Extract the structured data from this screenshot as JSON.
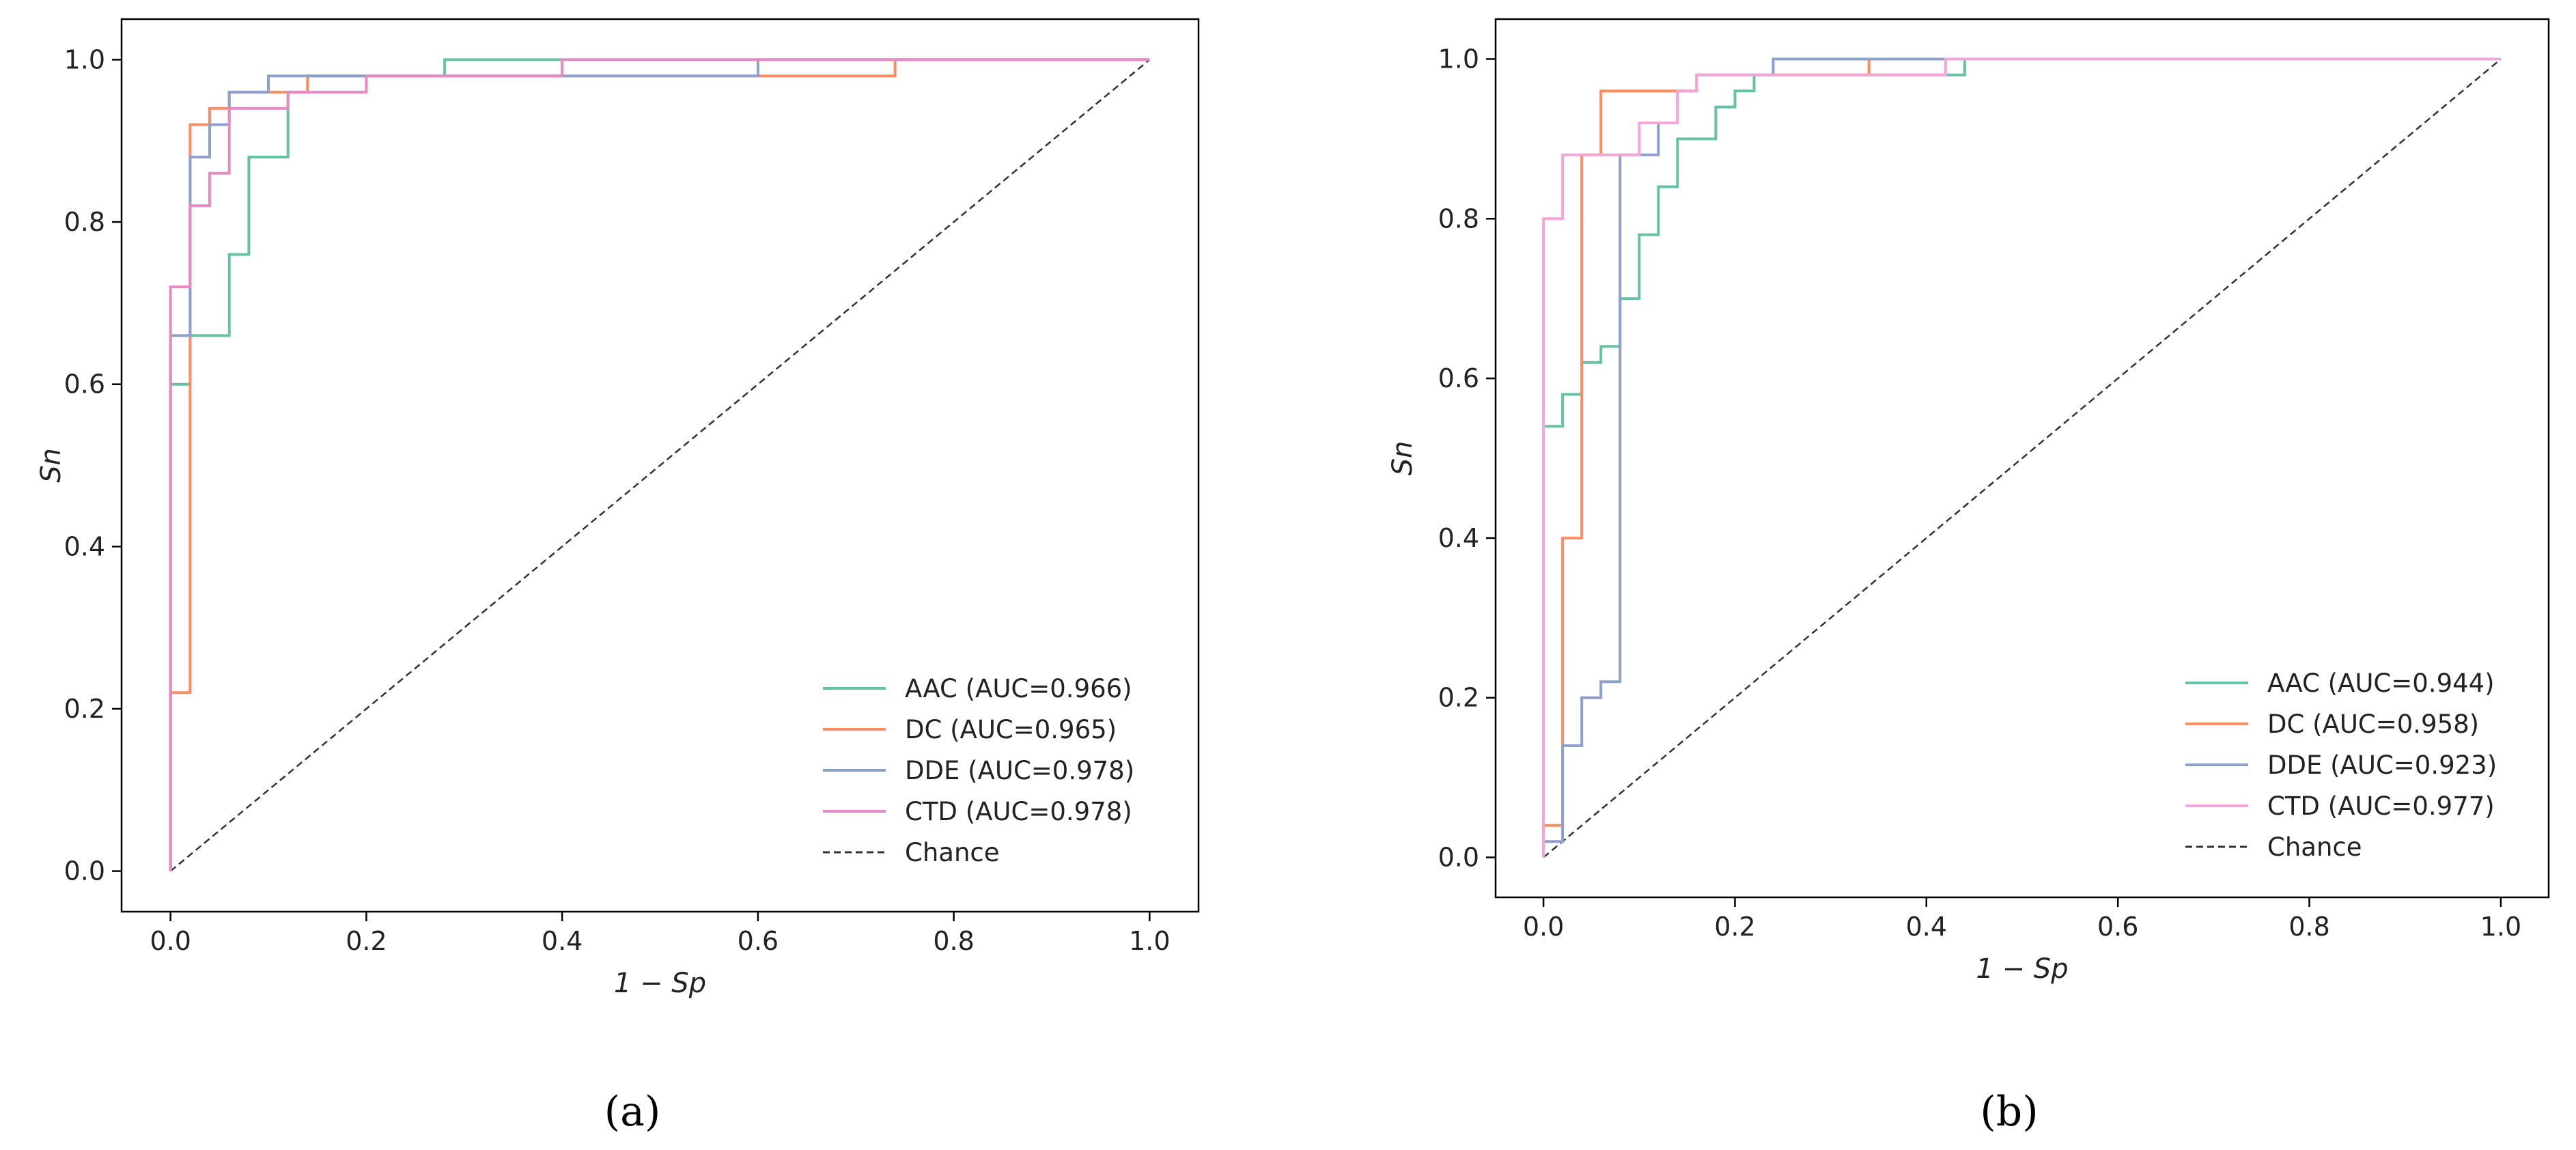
{
  "chart_data": [
    {
      "type": "line",
      "subtype": "roc_curve",
      "panel_label": "a",
      "xlabel": "1 − Sp",
      "ylabel": "Sn",
      "xlim": [
        -0.05,
        1.05
      ],
      "ylim": [
        -0.05,
        1.05
      ],
      "xticks": [
        0.0,
        0.2,
        0.4,
        0.6,
        0.8,
        1.0
      ],
      "yticks": [
        0.0,
        0.2,
        0.4,
        0.6,
        0.8,
        1.0
      ],
      "tick_labels": [
        "0.0",
        "0.2",
        "0.4",
        "0.6",
        "0.8",
        "1.0"
      ],
      "grid": false,
      "legend_position": "lower-right",
      "series": [
        {
          "name": "AAC",
          "label": "AAC (AUC=0.966)",
          "auc": 0.966,
          "color": "#66c2a5",
          "points": [
            [
              0,
              0
            ],
            [
              0,
              0.6
            ],
            [
              0.02,
              0.6
            ],
            [
              0.02,
              0.66
            ],
            [
              0.06,
              0.66
            ],
            [
              0.06,
              0.76
            ],
            [
              0.08,
              0.76
            ],
            [
              0.08,
              0.88
            ],
            [
              0.12,
              0.88
            ],
            [
              0.12,
              0.96
            ],
            [
              0.14,
              0.96
            ],
            [
              0.14,
              0.98
            ],
            [
              0.28,
              0.98
            ],
            [
              0.28,
              1.0
            ],
            [
              1.0,
              1.0
            ]
          ]
        },
        {
          "name": "DC",
          "label": "DC (AUC=0.965)",
          "auc": 0.965,
          "color": "#fc8d62",
          "points": [
            [
              0,
              0
            ],
            [
              0,
              0.22
            ],
            [
              0.02,
              0.22
            ],
            [
              0.02,
              0.92
            ],
            [
              0.04,
              0.92
            ],
            [
              0.04,
              0.94
            ],
            [
              0.06,
              0.94
            ],
            [
              0.06,
              0.96
            ],
            [
              0.14,
              0.96
            ],
            [
              0.14,
              0.98
            ],
            [
              0.74,
              0.98
            ],
            [
              0.74,
              1.0
            ],
            [
              1.0,
              1.0
            ]
          ]
        },
        {
          "name": "DDE",
          "label": "DDE (AUC=0.978)",
          "auc": 0.978,
          "color": "#8da0cb",
          "points": [
            [
              0,
              0
            ],
            [
              0,
              0.66
            ],
            [
              0.02,
              0.66
            ],
            [
              0.02,
              0.88
            ],
            [
              0.04,
              0.88
            ],
            [
              0.04,
              0.92
            ],
            [
              0.06,
              0.92
            ],
            [
              0.06,
              0.96
            ],
            [
              0.1,
              0.96
            ],
            [
              0.1,
              0.98
            ],
            [
              0.6,
              0.98
            ],
            [
              0.6,
              1.0
            ],
            [
              1.0,
              1.0
            ]
          ]
        },
        {
          "name": "CTD",
          "label": "CTD (AUC=0.978)",
          "auc": 0.978,
          "color": "#e78ac3",
          "points": [
            [
              0,
              0
            ],
            [
              0,
              0.72
            ],
            [
              0.02,
              0.72
            ],
            [
              0.02,
              0.82
            ],
            [
              0.04,
              0.82
            ],
            [
              0.04,
              0.86
            ],
            [
              0.06,
              0.86
            ],
            [
              0.06,
              0.94
            ],
            [
              0.12,
              0.94
            ],
            [
              0.12,
              0.96
            ],
            [
              0.2,
              0.96
            ],
            [
              0.2,
              0.98
            ],
            [
              0.4,
              0.98
            ],
            [
              0.4,
              1.0
            ],
            [
              1.0,
              1.0
            ]
          ]
        },
        {
          "name": "Chance",
          "label": "Chance",
          "color": "#333333",
          "dashed": true,
          "points": [
            [
              0,
              0
            ],
            [
              1,
              1
            ]
          ]
        }
      ]
    },
    {
      "type": "line",
      "subtype": "roc_curve",
      "panel_label": "b",
      "xlabel": "1 − Sp",
      "ylabel": "Sn",
      "xlim": [
        -0.05,
        1.05
      ],
      "ylim": [
        -0.05,
        1.05
      ],
      "xticks": [
        0.0,
        0.2,
        0.4,
        0.6,
        0.8,
        1.0
      ],
      "yticks": [
        0.0,
        0.2,
        0.4,
        0.6,
        0.8,
        1.0
      ],
      "tick_labels": [
        "0.0",
        "0.2",
        "0.4",
        "0.6",
        "0.8",
        "1.0"
      ],
      "grid": false,
      "legend_position": "lower-right",
      "series": [
        {
          "name": "AAC",
          "label": "AAC (AUC=0.944)",
          "auc": 0.944,
          "color": "#66c2a5",
          "points": [
            [
              0,
              0
            ],
            [
              0,
              0.54
            ],
            [
              0.02,
              0.54
            ],
            [
              0.02,
              0.58
            ],
            [
              0.04,
              0.58
            ],
            [
              0.04,
              0.62
            ],
            [
              0.06,
              0.62
            ],
            [
              0.06,
              0.64
            ],
            [
              0.08,
              0.64
            ],
            [
              0.08,
              0.7
            ],
            [
              0.1,
              0.7
            ],
            [
              0.1,
              0.78
            ],
            [
              0.12,
              0.78
            ],
            [
              0.12,
              0.84
            ],
            [
              0.14,
              0.84
            ],
            [
              0.14,
              0.9
            ],
            [
              0.18,
              0.9
            ],
            [
              0.18,
              0.94
            ],
            [
              0.2,
              0.94
            ],
            [
              0.2,
              0.96
            ],
            [
              0.22,
              0.96
            ],
            [
              0.22,
              0.98
            ],
            [
              0.44,
              0.98
            ],
            [
              0.44,
              1.0
            ],
            [
              1.0,
              1.0
            ]
          ]
        },
        {
          "name": "DC",
          "label": "DC (AUC=0.958)",
          "auc": 0.958,
          "color": "#fc8d62",
          "points": [
            [
              0,
              0
            ],
            [
              0,
              0.04
            ],
            [
              0.02,
              0.04
            ],
            [
              0.02,
              0.4
            ],
            [
              0.04,
              0.4
            ],
            [
              0.04,
              0.88
            ],
            [
              0.06,
              0.88
            ],
            [
              0.06,
              0.96
            ],
            [
              0.16,
              0.96
            ],
            [
              0.16,
              0.98
            ],
            [
              0.34,
              0.98
            ],
            [
              0.34,
              1.0
            ],
            [
              1.0,
              1.0
            ]
          ]
        },
        {
          "name": "DDE",
          "label": "DDE (AUC=0.923)",
          "auc": 0.923,
          "color": "#8da0cb",
          "points": [
            [
              0,
              0
            ],
            [
              0,
              0.02
            ],
            [
              0.02,
              0.02
            ],
            [
              0.02,
              0.14
            ],
            [
              0.04,
              0.14
            ],
            [
              0.04,
              0.2
            ],
            [
              0.06,
              0.2
            ],
            [
              0.06,
              0.22
            ],
            [
              0.08,
              0.22
            ],
            [
              0.08,
              0.88
            ],
            [
              0.12,
              0.88
            ],
            [
              0.12,
              0.92
            ],
            [
              0.14,
              0.92
            ],
            [
              0.14,
              0.96
            ],
            [
              0.16,
              0.96
            ],
            [
              0.16,
              0.98
            ],
            [
              0.24,
              0.98
            ],
            [
              0.24,
              1.0
            ],
            [
              1.0,
              1.0
            ]
          ]
        },
        {
          "name": "CTD",
          "label": "CTD (AUC=0.977)",
          "auc": 0.977,
          "color": "#f4a6d7",
          "points": [
            [
              0,
              0
            ],
            [
              0,
              0.8
            ],
            [
              0.02,
              0.8
            ],
            [
              0.02,
              0.88
            ],
            [
              0.1,
              0.88
            ],
            [
              0.1,
              0.92
            ],
            [
              0.14,
              0.92
            ],
            [
              0.14,
              0.96
            ],
            [
              0.16,
              0.96
            ],
            [
              0.16,
              0.98
            ],
            [
              0.42,
              0.98
            ],
            [
              0.42,
              1.0
            ],
            [
              1.0,
              1.0
            ]
          ]
        },
        {
          "name": "Chance",
          "label": "Chance",
          "color": "#333333",
          "dashed": true,
          "points": [
            [
              0,
              0
            ],
            [
              1,
              1
            ]
          ]
        }
      ]
    }
  ],
  "captions": [
    "(a)",
    "(b)"
  ]
}
